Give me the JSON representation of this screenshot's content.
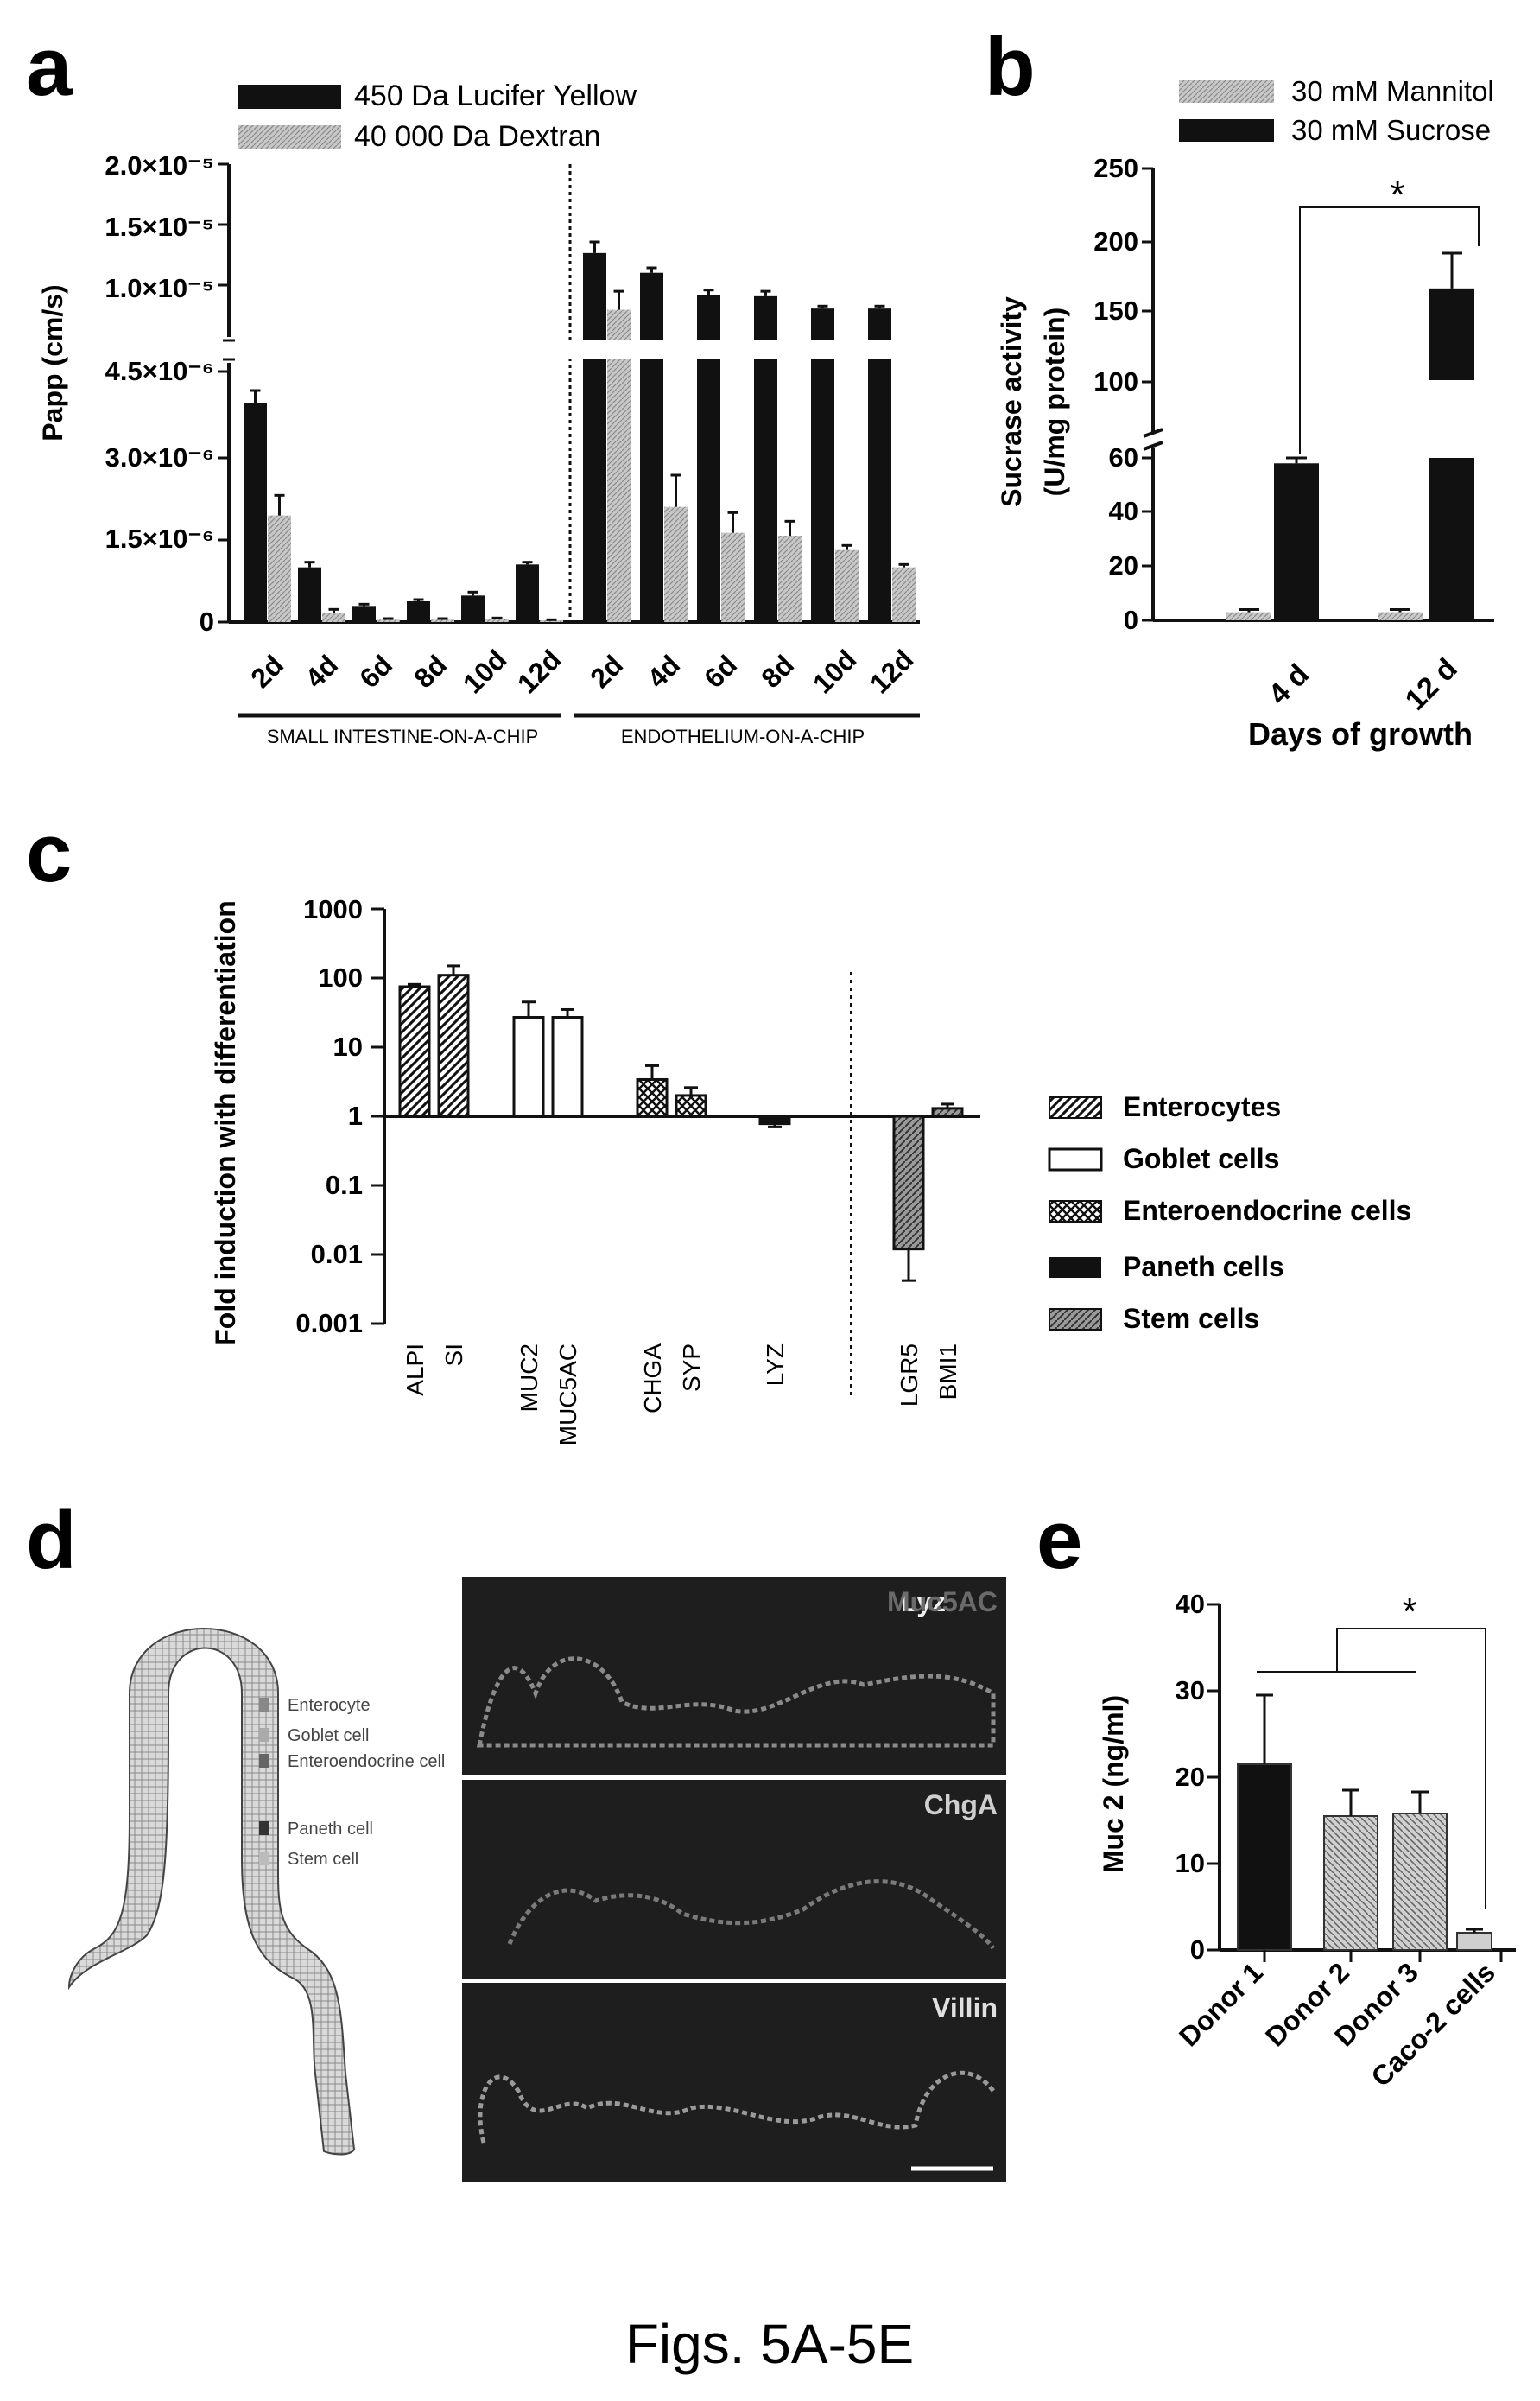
{
  "figure_caption": "Figs. 5A-5E",
  "colors": {
    "black": "#111111",
    "grey": "#b8b8b8",
    "mid": "#888888",
    "microscopy_bg": "#1e1e1e"
  },
  "panels": {
    "a": {
      "letter": "a",
      "ylabel": "Papp (cm/s)",
      "legend": [
        "450 Da Lucifer Yellow",
        "40 000 Da Dextran"
      ],
      "yticks_upper": [
        "2.0×10⁻⁵",
        "1.5×10⁻⁵",
        "1.0×10⁻⁵"
      ],
      "yticks_lower": [
        "4.5×10⁻⁶",
        "3.0×10⁻⁶",
        "1.5×10⁻⁶",
        "0"
      ],
      "categories": [
        "2d",
        "4d",
        "6d",
        "8d",
        "10d",
        "12d",
        "2d",
        "4d",
        "6d",
        "8d",
        "10d",
        "12d"
      ],
      "group_labels": [
        "SMALL INTESTINE-ON-A-CHIP",
        "ENDOTHELIUM-ON-A-CHIP"
      ]
    },
    "b": {
      "letter": "b",
      "ylabel_line1": "Sucrase activity",
      "ylabel_line2": "(U/mg protein)",
      "xlabel": "Days of growth",
      "legend": [
        "30 mM Mannitol",
        "30 mM Sucrose"
      ],
      "yticks_upper": [
        "250",
        "200",
        "150",
        "100"
      ],
      "yticks_lower": [
        "60",
        "40",
        "20",
        "0"
      ],
      "categories": [
        "4 d",
        "12 d"
      ],
      "sig": "*"
    },
    "c": {
      "letter": "c",
      "ylabel": "Fold induction with differentiation",
      "yticks": [
        "1000",
        "100",
        "10",
        "1",
        "0.1",
        "0.01",
        "0.001"
      ],
      "categories": [
        "ALPI",
        "SI",
        "MUC2",
        "MUC5AC",
        "CHGA",
        "SYP",
        "LYZ",
        "LGR5",
        "BMI1"
      ],
      "legend": [
        "Enterocytes",
        "Goblet cells",
        "Enteroendocrine cells",
        "Paneth cells",
        "Stem cells"
      ]
    },
    "d": {
      "letter": "d",
      "legend": [
        "Enterocyte",
        "Goblet cell",
        "Enteroendocrine cell",
        "Paneth cell",
        "Stem cell"
      ],
      "image_labels": [
        {
          "a": "Lyz",
          "b": "Muc5AC"
        },
        {
          "a": "ChgA",
          "b": ""
        },
        {
          "a": "Villin",
          "b": ""
        }
      ]
    },
    "e": {
      "letter": "e",
      "ylabel": "Muc 2 (ng/ml)",
      "yticks": [
        "40",
        "30",
        "20",
        "10",
        "0"
      ],
      "categories": [
        "Donor 1",
        "Donor 2",
        "Donor 3",
        "Caco-2 cells"
      ],
      "sig": "*"
    }
  },
  "chart_data": [
    {
      "panel": "a",
      "type": "bar",
      "ylabel": "Papp (cm/s)",
      "broken_axis": true,
      "categories": [
        "2d",
        "4d",
        "6d",
        "8d",
        "10d",
        "12d",
        "2d",
        "4d",
        "6d",
        "8d",
        "10d",
        "12d"
      ],
      "groups": [
        {
          "name": "SMALL INTESTINE-ON-A-CHIP",
          "indices": [
            0,
            1,
            2,
            3,
            4,
            5
          ]
        },
        {
          "name": "ENDOTHELIUM-ON-A-CHIP",
          "indices": [
            6,
            7,
            8,
            9,
            10,
            11
          ]
        }
      ],
      "series": [
        {
          "name": "450 Da Lucifer Yellow",
          "values": [
            3.8e-06,
            9.5e-07,
            2.8e-07,
            3.6e-07,
            4.6e-07,
            1e-06,
            1.28e-05,
            1.12e-05,
            9.4e-06,
            9.3e-06,
            8.3e-06,
            8.3e-06
          ],
          "errors": [
            2.2e-07,
            9e-08,
            3e-08,
            3e-08,
            6e-08,
            4e-08,
            9e-07,
            4e-07,
            4e-07,
            4e-07,
            2e-07,
            2e-07
          ]
        },
        {
          "name": "40 000 Da Dextran",
          "values": [
            1.85e-06,
            1.6e-07,
            4e-08,
            4e-08,
            5e-08,
            3e-08,
            8.2e-06,
            2e-06,
            1.55e-06,
            1.5e-06,
            1.25e-06,
            9.5e-07
          ],
          "errors": [
            3.5e-07,
            6e-08,
            2e-08,
            2e-08,
            2e-08,
            1e-08,
            1.5e-06,
            5.5e-07,
            3.5e-07,
            2.5e-07,
            8e-08,
            5e-08
          ]
        }
      ]
    },
    {
      "panel": "b",
      "type": "bar",
      "ylabel": "Sucrase activity (U/mg protein)",
      "xlabel": "Days of growth",
      "broken_axis": true,
      "categories": [
        "4 d",
        "12 d"
      ],
      "series": [
        {
          "name": "30 mM Mannitol",
          "values": [
            3,
            3
          ],
          "errors": [
            1,
            1
          ]
        },
        {
          "name": "30 mM Sucrose",
          "values": [
            58,
            165
          ],
          "errors": [
            2,
            25
          ]
        }
      ],
      "annotations": [
        "*"
      ]
    },
    {
      "panel": "c",
      "type": "bar",
      "ylabel": "Fold induction with differentiation",
      "yscale": "log",
      "ylim": [
        0.001,
        1000
      ],
      "baseline": 1,
      "categories": [
        "ALPI",
        "SI",
        "MUC2",
        "MUC5AC",
        "CHGA",
        "SYP",
        "LYZ",
        "LGR5",
        "BMI1"
      ],
      "values": [
        75,
        110,
        27,
        27,
        3.4,
        2.0,
        0.78,
        0.012,
        1.3
      ],
      "errors": [
        6,
        40,
        18,
        8,
        2.0,
        0.6,
        0.08,
        0.008,
        0.2
      ],
      "cell_types": [
        "Enterocytes",
        "Enterocytes",
        "Goblet cells",
        "Goblet cells",
        "Enteroendocrine cells",
        "Enteroendocrine cells",
        "Paneth cells",
        "Stem cells",
        "Stem cells"
      ]
    },
    {
      "panel": "e",
      "type": "bar",
      "ylabel": "Muc 2 (ng/ml)",
      "ylim": [
        0,
        40
      ],
      "categories": [
        "Donor 1",
        "Donor 2",
        "Donor 3",
        "Caco-2 cells"
      ],
      "values": [
        21.5,
        15.5,
        15.8,
        2.0
      ],
      "errors": [
        8.0,
        3.0,
        2.5,
        0.4
      ],
      "annotations": [
        "*"
      ]
    }
  ]
}
